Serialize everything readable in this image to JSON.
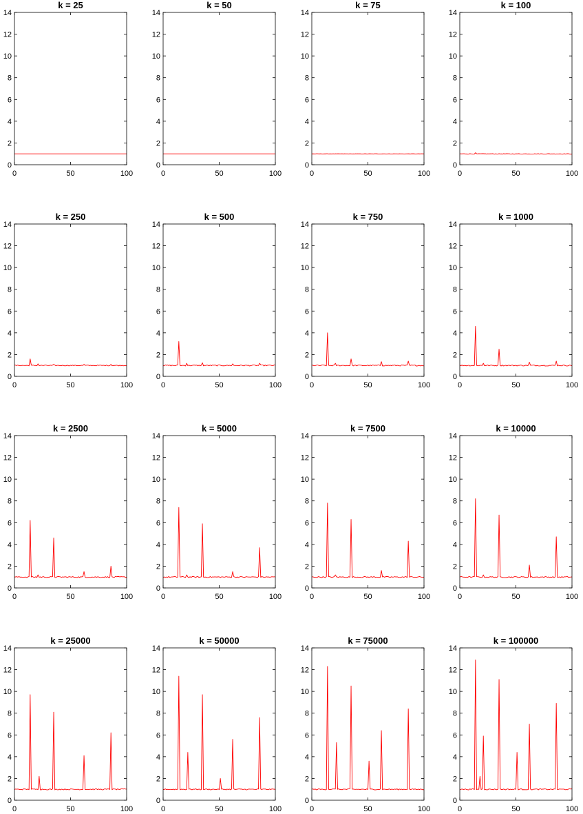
{
  "figure": {
    "panel_rows": 4,
    "panel_cols": 4,
    "series_color": "#ff0000",
    "axis_color": "#000000",
    "background": "#ffffff"
  },
  "chart_data": [
    {
      "type": "line",
      "title": "k = 25",
      "xlim": [
        0,
        100
      ],
      "ylim": [
        0,
        14
      ],
      "xticks": [
        0,
        50,
        100
      ],
      "yticks": [
        0,
        2,
        4,
        6,
        8,
        10,
        12,
        14
      ],
      "baseline": 1.0,
      "noise": 0.0,
      "peaks": []
    },
    {
      "type": "line",
      "title": "k = 50",
      "xlim": [
        0,
        100
      ],
      "ylim": [
        0,
        14
      ],
      "xticks": [
        0,
        50,
        100
      ],
      "yticks": [
        0,
        2,
        4,
        6,
        8,
        10,
        12,
        14
      ],
      "baseline": 1.0,
      "noise": 0.0,
      "peaks": []
    },
    {
      "type": "line",
      "title": "k = 75",
      "xlim": [
        0,
        100
      ],
      "ylim": [
        0,
        14
      ],
      "xticks": [
        0,
        50,
        100
      ],
      "yticks": [
        0,
        2,
        4,
        6,
        8,
        10,
        12,
        14
      ],
      "baseline": 1.0,
      "noise": 0.01,
      "peaks": []
    },
    {
      "type": "line",
      "title": "k = 100",
      "xlim": [
        0,
        100
      ],
      "ylim": [
        0,
        14
      ],
      "xticks": [
        0,
        50,
        100
      ],
      "yticks": [
        0,
        2,
        4,
        6,
        8,
        10,
        12,
        14
      ],
      "baseline": 1.0,
      "noise": 0.02,
      "peaks": [
        {
          "x": 14,
          "y": 1.1
        }
      ]
    },
    {
      "type": "line",
      "title": "k = 250",
      "xlim": [
        0,
        100
      ],
      "ylim": [
        0,
        14
      ],
      "xticks": [
        0,
        50,
        100
      ],
      "yticks": [
        0,
        2,
        4,
        6,
        8,
        10,
        12,
        14
      ],
      "baseline": 1.0,
      "noise": 0.04,
      "peaks": [
        {
          "x": 14,
          "y": 1.6
        },
        {
          "x": 21,
          "y": 1.15
        },
        {
          "x": 35,
          "y": 1.1
        },
        {
          "x": 62,
          "y": 1.1
        },
        {
          "x": 86,
          "y": 1.1
        }
      ]
    },
    {
      "type": "line",
      "title": "k = 500",
      "xlim": [
        0,
        100
      ],
      "ylim": [
        0,
        14
      ],
      "xticks": [
        0,
        50,
        100
      ],
      "yticks": [
        0,
        2,
        4,
        6,
        8,
        10,
        12,
        14
      ],
      "baseline": 1.0,
      "noise": 0.05,
      "peaks": [
        {
          "x": 14,
          "y": 3.2
        },
        {
          "x": 21,
          "y": 1.2
        },
        {
          "x": 35,
          "y": 1.25
        },
        {
          "x": 62,
          "y": 1.15
        },
        {
          "x": 86,
          "y": 1.2
        }
      ]
    },
    {
      "type": "line",
      "title": "k = 750",
      "xlim": [
        0,
        100
      ],
      "ylim": [
        0,
        14
      ],
      "xticks": [
        0,
        50,
        100
      ],
      "yticks": [
        0,
        2,
        4,
        6,
        8,
        10,
        12,
        14
      ],
      "baseline": 1.0,
      "noise": 0.05,
      "peaks": [
        {
          "x": 14,
          "y": 4.0
        },
        {
          "x": 21,
          "y": 1.2
        },
        {
          "x": 35,
          "y": 1.6
        },
        {
          "x": 62,
          "y": 1.35
        },
        {
          "x": 86,
          "y": 1.4
        }
      ]
    },
    {
      "type": "line",
      "title": "k = 1000",
      "xlim": [
        0,
        100
      ],
      "ylim": [
        0,
        14
      ],
      "xticks": [
        0,
        50,
        100
      ],
      "yticks": [
        0,
        2,
        4,
        6,
        8,
        10,
        12,
        14
      ],
      "baseline": 1.0,
      "noise": 0.05,
      "peaks": [
        {
          "x": 14,
          "y": 4.6
        },
        {
          "x": 21,
          "y": 1.2
        },
        {
          "x": 35,
          "y": 2.5
        },
        {
          "x": 62,
          "y": 1.3
        },
        {
          "x": 86,
          "y": 1.4
        }
      ]
    },
    {
      "type": "line",
      "title": "k = 2500",
      "xlim": [
        0,
        100
      ],
      "ylim": [
        0,
        14
      ],
      "xticks": [
        0,
        50,
        100
      ],
      "yticks": [
        0,
        2,
        4,
        6,
        8,
        10,
        12,
        14
      ],
      "baseline": 1.0,
      "noise": 0.05,
      "peaks": [
        {
          "x": 14,
          "y": 6.2
        },
        {
          "x": 21,
          "y": 1.2
        },
        {
          "x": 35,
          "y": 4.6
        },
        {
          "x": 62,
          "y": 1.5
        },
        {
          "x": 86,
          "y": 2.0
        }
      ]
    },
    {
      "type": "line",
      "title": "k = 5000",
      "xlim": [
        0,
        100
      ],
      "ylim": [
        0,
        14
      ],
      "xticks": [
        0,
        50,
        100
      ],
      "yticks": [
        0,
        2,
        4,
        6,
        8,
        10,
        12,
        14
      ],
      "baseline": 1.0,
      "noise": 0.05,
      "peaks": [
        {
          "x": 14,
          "y": 7.4
        },
        {
          "x": 21,
          "y": 1.2
        },
        {
          "x": 35,
          "y": 5.9
        },
        {
          "x": 62,
          "y": 1.5
        },
        {
          "x": 86,
          "y": 3.7
        }
      ]
    },
    {
      "type": "line",
      "title": "k = 7500",
      "xlim": [
        0,
        100
      ],
      "ylim": [
        0,
        14
      ],
      "xticks": [
        0,
        50,
        100
      ],
      "yticks": [
        0,
        2,
        4,
        6,
        8,
        10,
        12,
        14
      ],
      "baseline": 1.0,
      "noise": 0.05,
      "peaks": [
        {
          "x": 14,
          "y": 7.8
        },
        {
          "x": 21,
          "y": 1.2
        },
        {
          "x": 35,
          "y": 6.3
        },
        {
          "x": 62,
          "y": 1.6
        },
        {
          "x": 86,
          "y": 4.3
        }
      ]
    },
    {
      "type": "line",
      "title": "k = 10000",
      "xlim": [
        0,
        100
      ],
      "ylim": [
        0,
        14
      ],
      "xticks": [
        0,
        50,
        100
      ],
      "yticks": [
        0,
        2,
        4,
        6,
        8,
        10,
        12,
        14
      ],
      "baseline": 1.0,
      "noise": 0.05,
      "peaks": [
        {
          "x": 14,
          "y": 8.2
        },
        {
          "x": 21,
          "y": 1.2
        },
        {
          "x": 35,
          "y": 6.7
        },
        {
          "x": 62,
          "y": 2.1
        },
        {
          "x": 86,
          "y": 4.7
        }
      ]
    },
    {
      "type": "line",
      "title": "k = 25000",
      "xlim": [
        0,
        100
      ],
      "ylim": [
        0,
        14
      ],
      "xticks": [
        0,
        50,
        100
      ],
      "yticks": [
        0,
        2,
        4,
        6,
        8,
        10,
        12,
        14
      ],
      "baseline": 1.0,
      "noise": 0.05,
      "peaks": [
        {
          "x": 14,
          "y": 9.7
        },
        {
          "x": 22,
          "y": 2.2
        },
        {
          "x": 35,
          "y": 8.1
        },
        {
          "x": 62,
          "y": 4.1
        },
        {
          "x": 86,
          "y": 6.2
        }
      ]
    },
    {
      "type": "line",
      "title": "k = 50000",
      "xlim": [
        0,
        100
      ],
      "ylim": [
        0,
        14
      ],
      "xticks": [
        0,
        50,
        100
      ],
      "yticks": [
        0,
        2,
        4,
        6,
        8,
        10,
        12,
        14
      ],
      "baseline": 1.0,
      "noise": 0.05,
      "peaks": [
        {
          "x": 14,
          "y": 11.4
        },
        {
          "x": 22,
          "y": 4.4
        },
        {
          "x": 35,
          "y": 9.7
        },
        {
          "x": 51,
          "y": 2.0
        },
        {
          "x": 62,
          "y": 5.6
        },
        {
          "x": 86,
          "y": 7.6
        }
      ]
    },
    {
      "type": "line",
      "title": "k = 75000",
      "xlim": [
        0,
        100
      ],
      "ylim": [
        0,
        14
      ],
      "xticks": [
        0,
        50,
        100
      ],
      "yticks": [
        0,
        2,
        4,
        6,
        8,
        10,
        12,
        14
      ],
      "baseline": 1.0,
      "noise": 0.05,
      "peaks": [
        {
          "x": 14,
          "y": 12.3
        },
        {
          "x": 22,
          "y": 5.3
        },
        {
          "x": 35,
          "y": 10.5
        },
        {
          "x": 51,
          "y": 3.6
        },
        {
          "x": 62,
          "y": 6.4
        },
        {
          "x": 86,
          "y": 8.4
        }
      ]
    },
    {
      "type": "line",
      "title": "k = 100000",
      "xlim": [
        0,
        100
      ],
      "ylim": [
        0,
        14
      ],
      "xticks": [
        0,
        50,
        100
      ],
      "yticks": [
        0,
        2,
        4,
        6,
        8,
        10,
        12,
        14
      ],
      "baseline": 1.0,
      "noise": 0.05,
      "peaks": [
        {
          "x": 14,
          "y": 12.9
        },
        {
          "x": 18,
          "y": 2.2
        },
        {
          "x": 21,
          "y": 5.9
        },
        {
          "x": 35,
          "y": 11.1
        },
        {
          "x": 51,
          "y": 4.4
        },
        {
          "x": 62,
          "y": 7.0
        },
        {
          "x": 86,
          "y": 8.9
        }
      ]
    }
  ]
}
